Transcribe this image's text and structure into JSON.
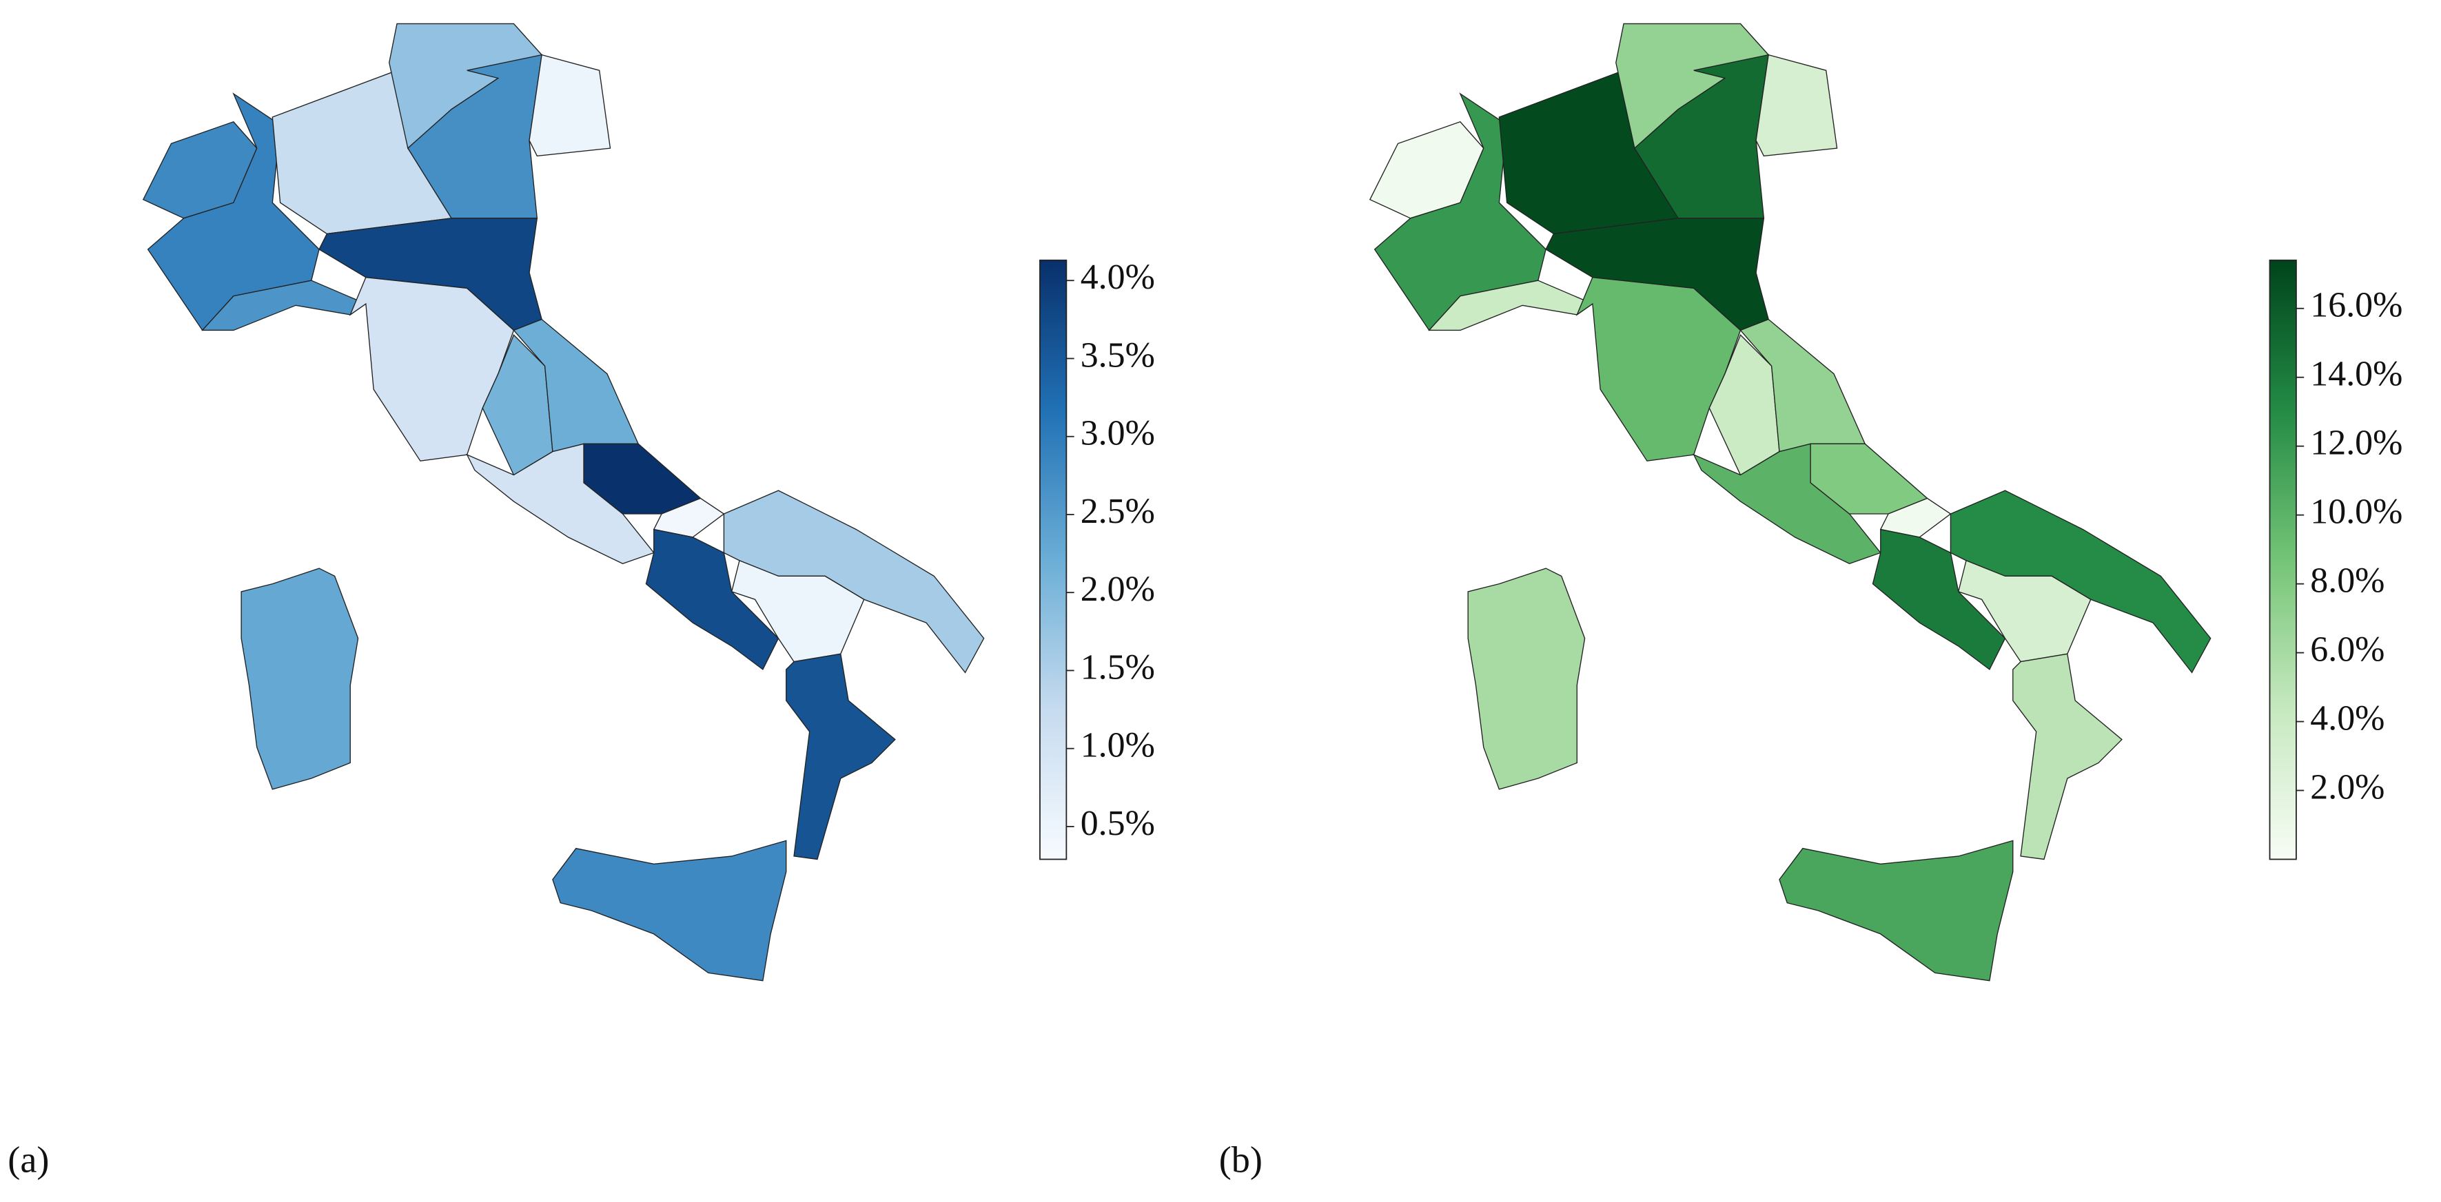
{
  "chart_data": [
    {
      "type": "choropleth",
      "label": "(a)",
      "values": [
        2.8,
        2.9,
        1.2,
        1.8,
        2.7,
        0.5,
        2.6,
        3.8,
        1.0,
        2.1,
        2.2,
        1.0,
        4.1,
        0.4,
        3.7,
        1.6,
        0.5,
        3.6,
        2.8,
        2.3
      ],
      "colormap": [
        "#f7fbff",
        "#c6dbef",
        "#6baed6",
        "#2171b5",
        "#08306b"
      ],
      "ylim": [
        0.29,
        4.13
      ],
      "yticks": [
        {
          "value": 0.5,
          "label": "0.5%"
        },
        {
          "value": 1.0,
          "label": "1.0%"
        },
        {
          "value": 1.5,
          "label": "1.5%"
        },
        {
          "value": 2.0,
          "label": "2.0%"
        },
        {
          "value": 2.5,
          "label": "2.5%"
        },
        {
          "value": 3.0,
          "label": "3.0%"
        },
        {
          "value": 3.5,
          "label": "3.5%"
        },
        {
          "value": 4.0,
          "label": "4.0%"
        }
      ]
    },
    {
      "type": "choropleth",
      "label": "(b)",
      "values": [
        0.5,
        12,
        17,
        7,
        15,
        3,
        4,
        17,
        9.5,
        4,
        7,
        10,
        8,
        0.5,
        14,
        13,
        3,
        5,
        11,
        6
      ],
      "colormap": [
        "#f7fcf5",
        "#c7e9c0",
        "#74c476",
        "#238b45",
        "#00441b"
      ],
      "ylim": [
        0.0,
        17.4
      ],
      "yticks": [
        {
          "value": 2,
          "label": "2.0%"
        },
        {
          "value": 4,
          "label": "4.0%"
        },
        {
          "value": 6,
          "label": "6.0%"
        },
        {
          "value": 8,
          "label": "8.0%"
        },
        {
          "value": 10,
          "label": "10.0%"
        },
        {
          "value": 12,
          "label": "12.0%"
        },
        {
          "value": 14,
          "label": "14.0%"
        },
        {
          "value": 16,
          "label": "16.0%"
        }
      ]
    }
  ]
}
